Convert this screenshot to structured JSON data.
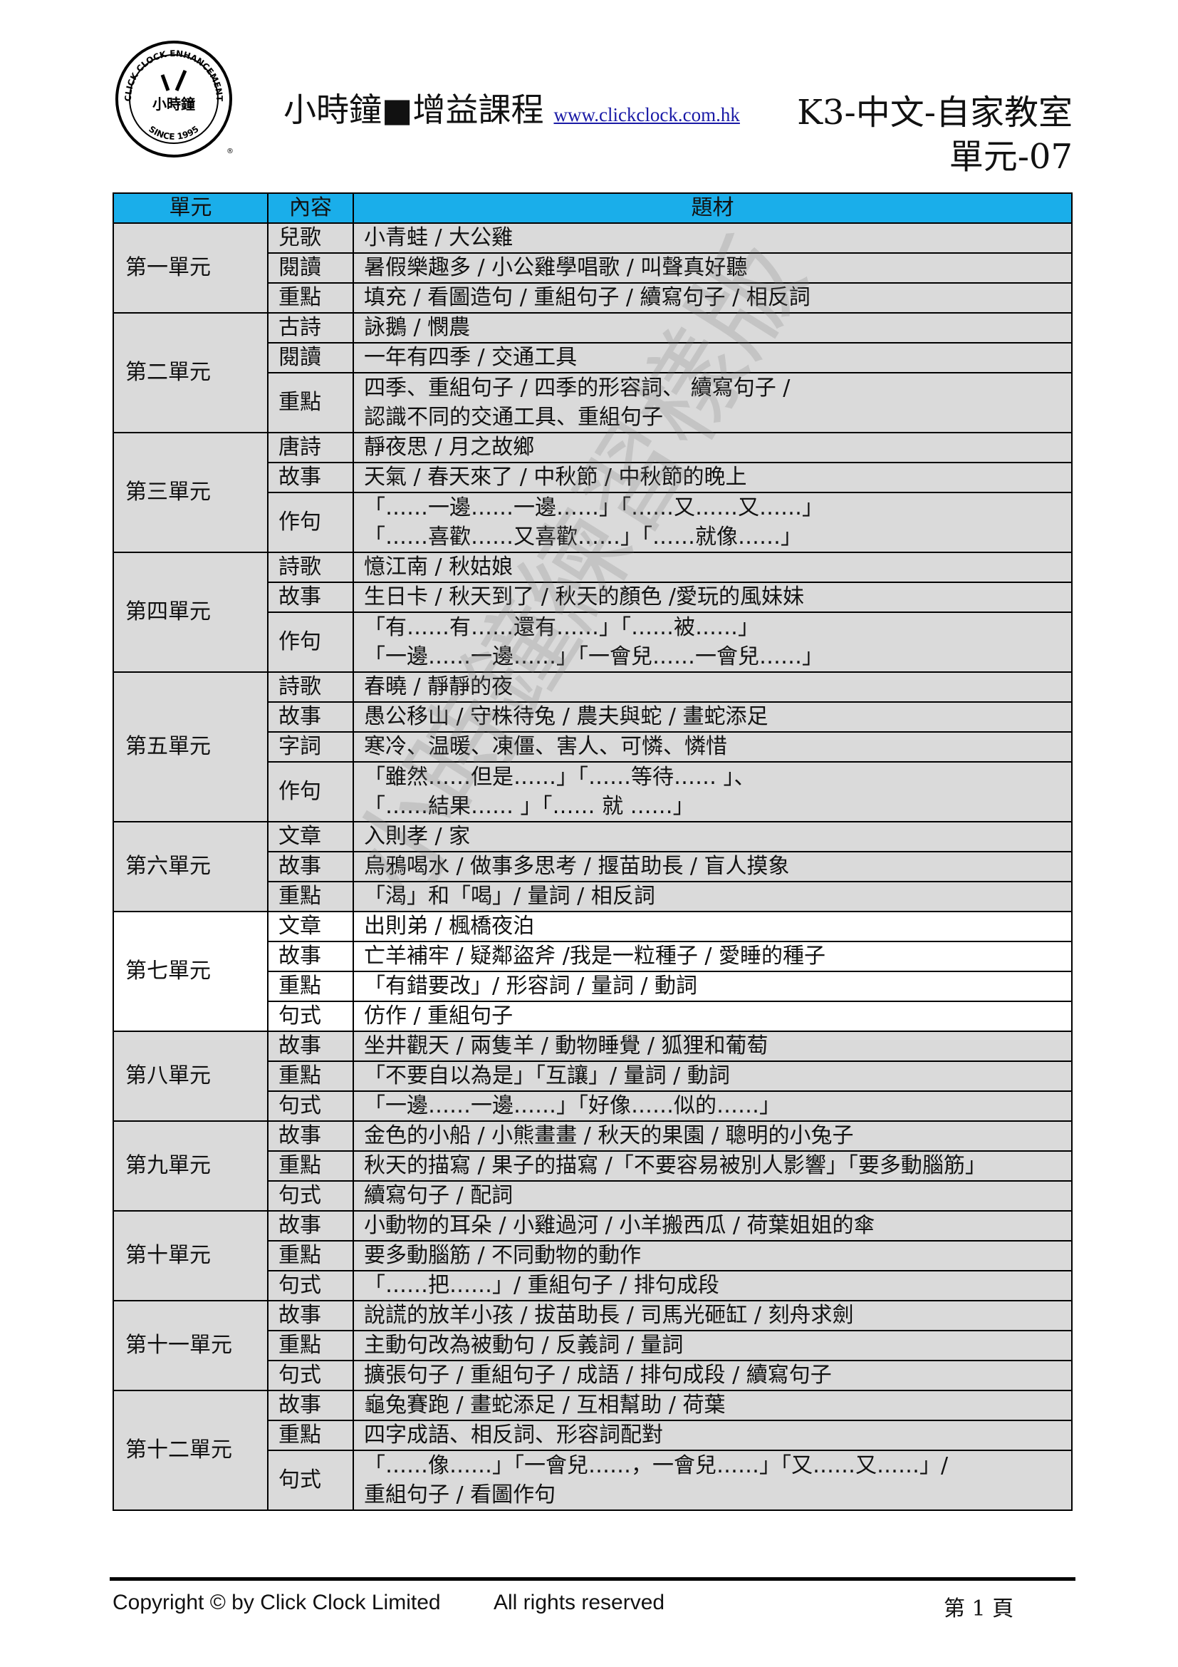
{
  "header": {
    "logo_text": {
      "top": "CLICK CLOCK ENHANCEMENT",
      "center": "小時鐘",
      "bottom": "SINCE 1995"
    },
    "title": "小時鐘■增益課程",
    "website": "www.clickclock.com.hk",
    "course": "K3-中文-自家教室",
    "unit_code": "單元-07"
  },
  "colors": {
    "header_bg": "#1aaeea",
    "row_bg": "#dadada",
    "highlight_row_bg": "#ffffff"
  },
  "table": {
    "columns": [
      "單元",
      "內容",
      "題材"
    ],
    "units": [
      {
        "name": "第一單元",
        "rows": [
          [
            "兒歌",
            "小青蛙 / 大公雞"
          ],
          [
            "閱讀",
            "暑假樂趣多 / 小公雞學唱歌 / 叫聲真好聽"
          ],
          [
            "重點",
            "填充 / 看圖造句 / 重組句子 / 續寫句子 / 相反詞"
          ]
        ]
      },
      {
        "name": "第二單元",
        "rows": [
          [
            "古詩",
            "詠鵝 / 憫農"
          ],
          [
            "閱讀",
            "一年有四季 / 交通工具"
          ],
          [
            "重點",
            "四季、重組句子 / 四季的形容詞、 續寫句子 /\n認識不同的交通工具、重組句子"
          ]
        ]
      },
      {
        "name": "第三單元",
        "rows": [
          [
            "唐詩",
            "靜夜思 / 月之故鄉"
          ],
          [
            "故事",
            "天氣 / 春天來了 / 中秋節 / 中秋節的晚上"
          ],
          [
            "作句",
            "「……一邊……一邊……」「……又……又……」\n「……喜歡……又喜歡……」「……就像……」"
          ]
        ]
      },
      {
        "name": "第四單元",
        "rows": [
          [
            "詩歌",
            "憶江南 / 秋姑娘"
          ],
          [
            "故事",
            "生日卡 / 秋天到了 / 秋天的顏色 /愛玩的風妹妹"
          ],
          [
            "作句",
            "「有……有……還有……」「……被……」\n「一邊……一邊……」「一會兒……一會兒……」"
          ]
        ]
      },
      {
        "name": "第五單元",
        "rows": [
          [
            "詩歌",
            "春曉 / 靜靜的夜"
          ],
          [
            "故事",
            "愚公移山 / 守株待兔 / 農夫與蛇 / 畫蛇添足"
          ],
          [
            "字詞",
            "寒冷、温暖、凍僵、害人、可憐、憐惜"
          ],
          [
            "作句",
            "「雖然……但是……」「……等待…… 」、\n「……結果…… 」「…… 就 ……」"
          ]
        ]
      },
      {
        "name": "第六單元",
        "rows": [
          [
            "文章",
            "入則孝 / 家"
          ],
          [
            "故事",
            "烏鴉喝水 / 做事多思考 / 揠苗助長 / 盲人摸象"
          ],
          [
            "重點",
            "「渴」和「喝」/ 量詞 / 相反詞"
          ]
        ]
      },
      {
        "name": "第七單元",
        "highlight": true,
        "rows": [
          [
            "文章",
            "出則弟 / 楓橋夜泊"
          ],
          [
            "故事",
            "亡羊補牢 / 疑鄰盜斧 /我是一粒種子 / 愛睡的種子"
          ],
          [
            "重點",
            "「有錯要改」/ 形容詞 / 量詞 / 動詞"
          ],
          [
            "句式",
            "仿作 / 重組句子"
          ]
        ]
      },
      {
        "name": "第八單元",
        "rows": [
          [
            "故事",
            "坐井觀天 / 兩隻羊 / 動物睡覺 / 狐狸和葡萄"
          ],
          [
            "重點",
            "「不要自以為是」「互讓」/ 量詞 / 動詞"
          ],
          [
            "句式",
            "「一邊……一邊……」「好像……似的……」"
          ]
        ]
      },
      {
        "name": "第九單元",
        "rows": [
          [
            "故事",
            "金色的小船 / 小熊畫畫 / 秋天的果園 / 聰明的小兔子"
          ],
          [
            "重點",
            "秋天的描寫 / 果子的描寫 /「不要容易被別人影響」「要多動腦筋」"
          ],
          [
            "句式",
            "續寫句子 / 配詞"
          ]
        ]
      },
      {
        "name": "第十單元",
        "rows": [
          [
            "故事",
            "小動物的耳朵 / 小雞過河 / 小羊搬西瓜 / 荷葉姐姐的傘"
          ],
          [
            "重點",
            "要多動腦筋 / 不同動物的動作"
          ],
          [
            "句式",
            "「……把……」/ 重組句子 / 排句成段"
          ]
        ]
      },
      {
        "name": "第十一單元",
        "rows": [
          [
            "故事",
            "說謊的放羊小孩 / 拔苗助長 / 司馬光砸缸 / 刻舟求劍"
          ],
          [
            "重點",
            "主動句改為被動句 / 反義詞 / 量詞"
          ],
          [
            "句式",
            "擴張句子 / 重組句子 / 成語 / 排句成段 / 續寫句子"
          ]
        ]
      },
      {
        "name": "第十二單元",
        "rows": [
          [
            "故事",
            "龜兔賽跑 / 畫蛇添足 / 互相幫助 / 荷葉"
          ],
          [
            "重點",
            "四字成語、相反詞、形容詞配對"
          ],
          [
            "句式",
            "「……像……」「一會兒……，一會兒……」「又……又……」/\n重組句子 / 看圖作句"
          ]
        ]
      }
    ]
  },
  "watermark": "小時鐘練習樣版",
  "footer": {
    "copyright": "Copyright © by Click Clock Limited",
    "rights": "All rights reserved",
    "page": "第 1 頁"
  }
}
